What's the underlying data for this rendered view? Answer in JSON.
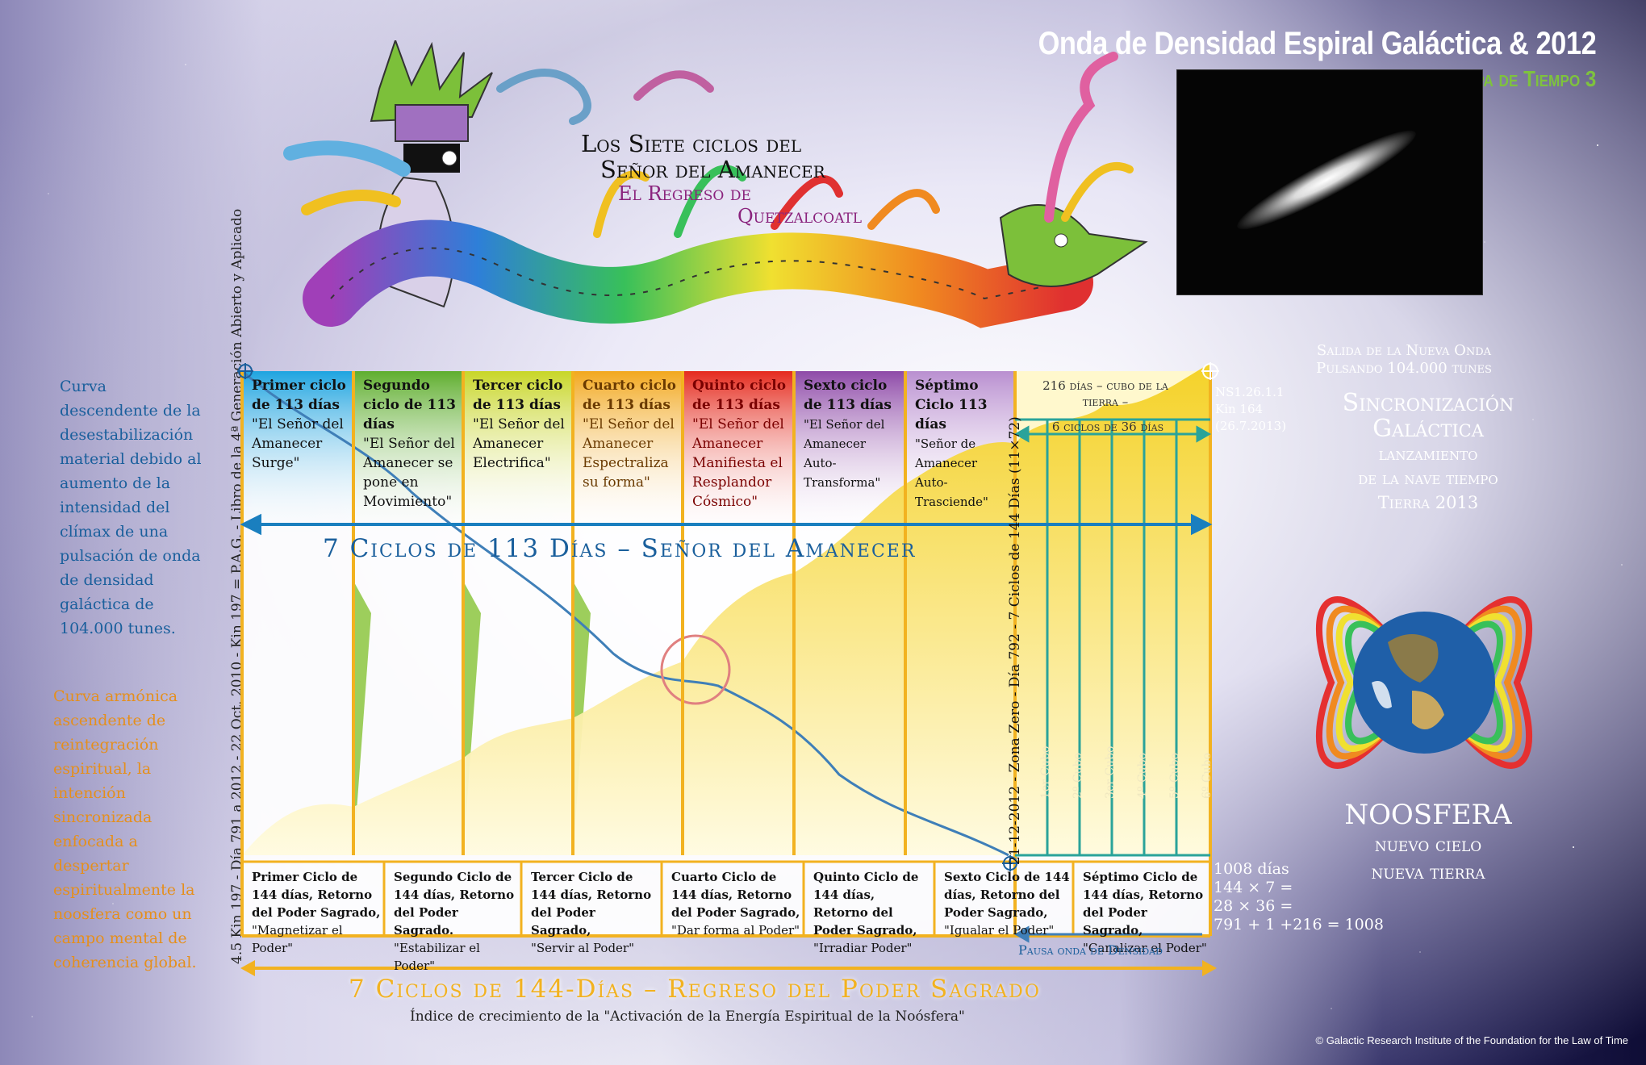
{
  "header": {
    "title": "Onda de Densidad Espiral Galáctica & 2012",
    "subtitle": "Mapa de Tiempo 3"
  },
  "art_title": {
    "line1": "Los Siete ciclos del",
    "line2": "Señor del Amanecer",
    "line3": "El Regreso de",
    "line4": "Quetzalcoatl"
  },
  "left": {
    "blue_curve": "Curva descendente de la desestabilización material debido al aumento de la intensidad del clímax de una pulsación de onda de densidad galáctica de 104.000 tunes.",
    "orange_curve": "Curva armónica ascendente de reintegración espiritual, la intención sincronizada enfocada a despertar espiritualmente la noosfera como un campo mental de coherencia global.",
    "vertical_text": "4.5 Kin 197 - Día 791 a 2012 - 22 Oct. 2010 - Kin 197 = P.A.G. - Libro de la 4ª Generación Abierto y Aplicado"
  },
  "top_cycles": [
    {
      "title": "Primer ciclo de 113 días",
      "quote": "\"El Señor del Amanecer Surge\"",
      "color": "#1ea4e0"
    },
    {
      "title": "Segundo ciclo de 113 días",
      "quote": "\"El Señor del Amanecer se pone en Movimiento\"",
      "color": "#5fae2e"
    },
    {
      "title": "Tercer ciclo de 113 días",
      "quote": "\"El Señor del Amanecer Electrifica\"",
      "color": "#c8d628"
    },
    {
      "title": "Cuarto ciclo de 113 días",
      "quote": "\"El Señor del Amanecer Espectraliza su forma\"",
      "color": "#f2a81e"
    },
    {
      "title": "Quinto ciclo de 113 días",
      "quote": "\"El Señor del Amanecer Manifiesta el Resplandor Cósmico\"",
      "color": "#e52b1e"
    },
    {
      "title": "Sexto ciclo de 113 días",
      "quote": "\"El Señor del Amanecer Auto-Transforma\"",
      "color": "#8e4aa8"
    },
    {
      "title": "Séptimo Ciclo 113 días",
      "quote": "\"Señor de Amanecer Auto-Trasciende\"",
      "color": "#b98fd0"
    }
  ],
  "bottom_cycles": [
    {
      "title": "Primer Ciclo de 144 días, Retorno del Poder Sagrado,",
      "quote": "\"Magnetizar el Poder\""
    },
    {
      "title": "Segundo Ciclo de 144 días, Retorno del Poder Sagrado.",
      "quote": "\"Estabilizar el Poder\""
    },
    {
      "title": "Tercer Ciclo de 144 días, Retorno del Poder Sagrado,",
      "quote": "\"Servir al Poder\""
    },
    {
      "title": "Cuarto Ciclo de 144 días, Retorno del Poder Sagrado,",
      "quote": "\"Dar forma al Poder\""
    },
    {
      "title": "Quinto Ciclo de 144 días, Retorno del Poder Sagrado,",
      "quote": "\"Irradiar Poder\""
    },
    {
      "title": "Sexto Ciclo de 144 días, Retorno del Poder Sagrado,",
      "quote": "\"Igualar el Poder\""
    },
    {
      "title": "Séptimo Ciclo de 144 días, Retorno del Poder Sagrado,",
      "quote": "\"Canalizar el Poder\""
    }
  ],
  "middle": {
    "title_113": "7 Ciclos de 113 Días – Señor del Amanecer",
    "title_144": "7 Ciclos de 144-Días – Regreso del Poder Sagrado",
    "subtitle_144": "Índice de crecimiento de la \"Activación de la Energía Espiritual de la Noósfera\"",
    "vertical_zone": "21-12-2012 - Zona Zero - Día 792 - 7 Ciclos de 144 Días (11×72)",
    "cubo_header": "216 días – cubo de la tierra –",
    "cubo_sub": "6 ciclos de 36 días",
    "cubo_cols": [
      "1er Cubo",
      "2º Cubo",
      "3er Cubo",
      "4º Cubo",
      "5º Cubo",
      "6º Cubo"
    ],
    "pausa": "Pausa onda de Densidad"
  },
  "right": {
    "ns": "NS1.26.1.1",
    "kin": "Kin 164",
    "date": "(26.7.2013)",
    "salida_1": "Salida de la Nueva Onda",
    "salida_2": "Pulsando 104.000 tunes",
    "sinc_1": "Sincronización",
    "sinc_2": "Galáctica",
    "sinc_3": "lanzamiento",
    "sinc_4": "de la nave tiempo",
    "sinc_5": "Tierra 2013",
    "noos_1": "NOOSFERA",
    "noos_2": "nuevo cielo",
    "noos_3": "nueva tierra",
    "calc_1": "1008 días",
    "calc_2": "144 × 7 =",
    "calc_3": "28 × 36 =",
    "calc_4": "791 + 1 +216 = 1008"
  },
  "footer": {
    "copyright": "© Galactic Research Institute of the Foundation for the Law of Time"
  },
  "colors": {
    "blue_line": "#3f7fb8",
    "yellow_area": "#f4d020",
    "frame": "#f2b220",
    "teal": "#2aa39a"
  }
}
